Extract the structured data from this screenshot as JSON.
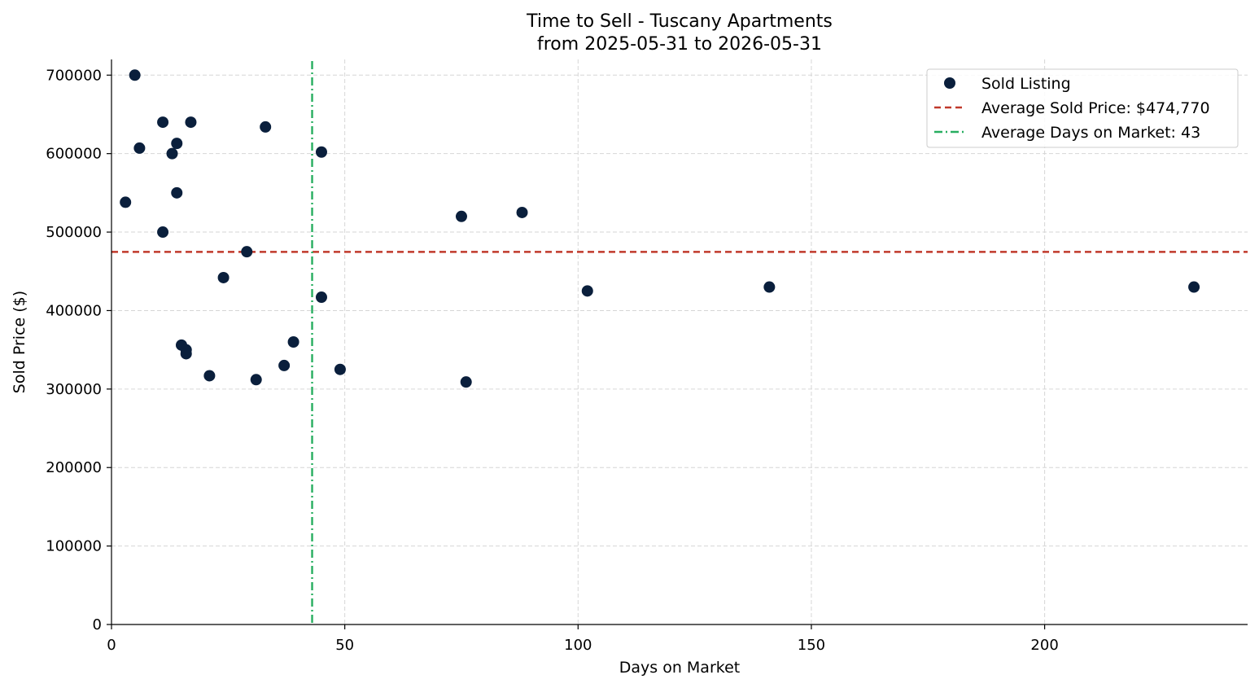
{
  "chart_data": {
    "type": "scatter",
    "title": "Time to Sell - Tuscany Apartments",
    "subtitle": "from 2025-05-31 to 2026-05-31",
    "xlabel": "Days on Market",
    "ylabel": "Sold Price ($)",
    "xlim": [
      0,
      243.5
    ],
    "ylim": [
      0,
      720000
    ],
    "xticks": [
      0,
      50,
      100,
      150,
      200
    ],
    "yticks": [
      0,
      100000,
      200000,
      300000,
      400000,
      500000,
      600000,
      700000
    ],
    "grid": true,
    "legend_position": "top-right",
    "colors": {
      "points": "#0a1f3c",
      "avg_price": "#c0392b",
      "avg_days": "#27ae60",
      "grid": "#d6d6d6"
    },
    "series": [
      {
        "name": "Sold Listing",
        "x": [
          5,
          3,
          6,
          11,
          11,
          13,
          14,
          14,
          17,
          33,
          45,
          29,
          24,
          45,
          15,
          16,
          16,
          21,
          31,
          37,
          39,
          49,
          75,
          76,
          88,
          102,
          141,
          232
        ],
        "y": [
          700000,
          538000,
          607000,
          640000,
          500000,
          600000,
          613000,
          550000,
          640000,
          634000,
          602000,
          475000,
          442000,
          417000,
          356000,
          350000,
          345000,
          317000,
          312000,
          330000,
          360000,
          325000,
          520000,
          309000,
          525000,
          425000,
          430000,
          430000
        ]
      }
    ],
    "reference_lines": [
      {
        "name": "Average Sold Price: $474,770",
        "orientation": "horizontal",
        "value": 474770,
        "style": "dashed"
      },
      {
        "name": "Average Days on Market: 43",
        "orientation": "vertical",
        "value": 43,
        "style": "dashdot"
      }
    ]
  }
}
